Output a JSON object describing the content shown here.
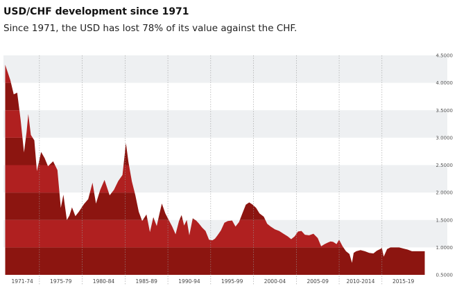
{
  "header": {
    "title": "USD/CHF development since 1971",
    "subtitle": "Since 1971, the USD has lost 78% of its value against the CHF."
  },
  "chart_data": {
    "type": "area",
    "title": "USD/CHF development since 1971",
    "subtitle": "Since 1971, the USD has lost 78% of its value against the CHF.",
    "xlabel": "",
    "ylabel": "",
    "ylim": [
      0.5,
      4.5
    ],
    "xlim": [
      1970.8,
      2020.2
    ],
    "y_ticks": [
      {
        "value": 4.5,
        "label": "4.5000"
      },
      {
        "value": 4.0,
        "label": "4.0000"
      },
      {
        "value": 3.5,
        "label": "3.5000"
      },
      {
        "value": 3.0,
        "label": "3.0000"
      },
      {
        "value": 2.5,
        "label": "2.5000"
      },
      {
        "value": 2.0,
        "label": "2.0000"
      },
      {
        "value": 1.5,
        "label": "1.5000"
      },
      {
        "value": 1.0,
        "label": "1.0000"
      },
      {
        "value": 0.5,
        "label": "0.5000"
      }
    ],
    "x_categories": [
      {
        "label": "1971-74",
        "center": 1973.0
      },
      {
        "label": "1975-79",
        "center": 1977.5
      },
      {
        "label": "1980-84",
        "center": 1982.5
      },
      {
        "label": "1985-89",
        "center": 1987.5
      },
      {
        "label": "1990-94",
        "center": 1992.5
      },
      {
        "label": "1995-99",
        "center": 1997.5
      },
      {
        "label": "2000-04",
        "center": 2002.5
      },
      {
        "label": "2005-09",
        "center": 2007.5
      },
      {
        "label": "2010-2014",
        "center": 2012.5
      },
      {
        "label": "2015-19",
        "center": 2017.5
      }
    ],
    "period_dividers": [
      1975,
      1980,
      1985,
      1990,
      1995,
      2000,
      2005,
      2010,
      2015
    ],
    "band_style": "alternating light-gray stripes every 0.5; area colored darker/lighter red by the same bands",
    "colors": {
      "dark": "#8c1510",
      "light": "#b02020",
      "band": "#eef0f2",
      "divider": "#999999"
    },
    "series": [
      {
        "name": "USD/CHF",
        "x": [
          1971.0,
          1971.6,
          1972.0,
          1972.4,
          1972.8,
          1973.2,
          1973.5,
          1973.7,
          1974.0,
          1974.4,
          1974.7,
          1975.2,
          1975.6,
          1976.0,
          1976.6,
          1977.1,
          1977.5,
          1977.8,
          1978.2,
          1978.5,
          1978.8,
          1979.2,
          1979.6,
          1980.2,
          1980.7,
          1981.2,
          1981.6,
          1982.1,
          1982.6,
          1983.2,
          1983.7,
          1984.2,
          1984.7,
          1985.1,
          1985.4,
          1985.8,
          1986.2,
          1986.6,
          1987.0,
          1987.5,
          1987.9,
          1988.3,
          1988.7,
          1989.0,
          1989.3,
          1989.7,
          1990.1,
          1990.5,
          1990.9,
          1991.3,
          1991.6,
          1991.9,
          1992.2,
          1992.5,
          1992.9,
          1993.3,
          1993.6,
          1994.0,
          1994.4,
          1994.8,
          1995.2,
          1995.5,
          1995.8,
          1996.2,
          1996.6,
          1997.0,
          1997.5,
          1997.9,
          1998.3,
          1998.7,
          1999.1,
          1999.5,
          1999.9,
          2000.3,
          2000.7,
          2001.2,
          2001.6,
          2002.0,
          2002.5,
          2003.0,
          2003.5,
          2004.0,
          2004.4,
          2004.8,
          2005.2,
          2005.6,
          2006.0,
          2006.5,
          2007.0,
          2007.5,
          2007.9,
          2008.3,
          2008.7,
          2009.0,
          2009.3,
          2009.7,
          2010.0,
          2010.4,
          2010.8,
          2011.2,
          2011.5,
          2011.7,
          2012.0,
          2012.5,
          2013.0,
          2013.5,
          2014.0,
          2014.4,
          2014.8,
          2015.0,
          2015.2,
          2015.6,
          2016.0,
          2016.5,
          2017.0,
          2017.5,
          2018.0,
          2018.5,
          2019.0,
          2019.5,
          2020.0
        ],
        "y": [
          4.33,
          4.05,
          3.79,
          3.82,
          3.33,
          2.73,
          3.1,
          3.43,
          3.05,
          2.95,
          2.39,
          2.74,
          2.63,
          2.48,
          2.57,
          2.41,
          1.72,
          1.96,
          1.5,
          1.58,
          1.73,
          1.57,
          1.65,
          1.79,
          1.88,
          2.18,
          1.8,
          2.05,
          2.23,
          1.95,
          2.05,
          2.21,
          2.32,
          2.9,
          2.55,
          2.2,
          1.95,
          1.65,
          1.48,
          1.6,
          1.28,
          1.55,
          1.39,
          1.6,
          1.8,
          1.62,
          1.5,
          1.38,
          1.24,
          1.48,
          1.59,
          1.4,
          1.5,
          1.22,
          1.53,
          1.49,
          1.44,
          1.36,
          1.3,
          1.14,
          1.13,
          1.16,
          1.22,
          1.31,
          1.45,
          1.48,
          1.49,
          1.38,
          1.46,
          1.62,
          1.78,
          1.82,
          1.78,
          1.72,
          1.62,
          1.56,
          1.43,
          1.38,
          1.33,
          1.3,
          1.25,
          1.2,
          1.15,
          1.2,
          1.29,
          1.3,
          1.23,
          1.22,
          1.25,
          1.17,
          1.02,
          1.06,
          1.09,
          1.11,
          1.1,
          1.06,
          1.14,
          1.02,
          0.93,
          0.88,
          0.72,
          0.9,
          0.93,
          0.95,
          0.93,
          0.9,
          0.89,
          0.94,
          0.97,
          0.99,
          0.83,
          0.97,
          1.0,
          1.0,
          1.0,
          0.98,
          0.96,
          0.93,
          0.93,
          0.93,
          0.93
        ]
      }
    ]
  }
}
